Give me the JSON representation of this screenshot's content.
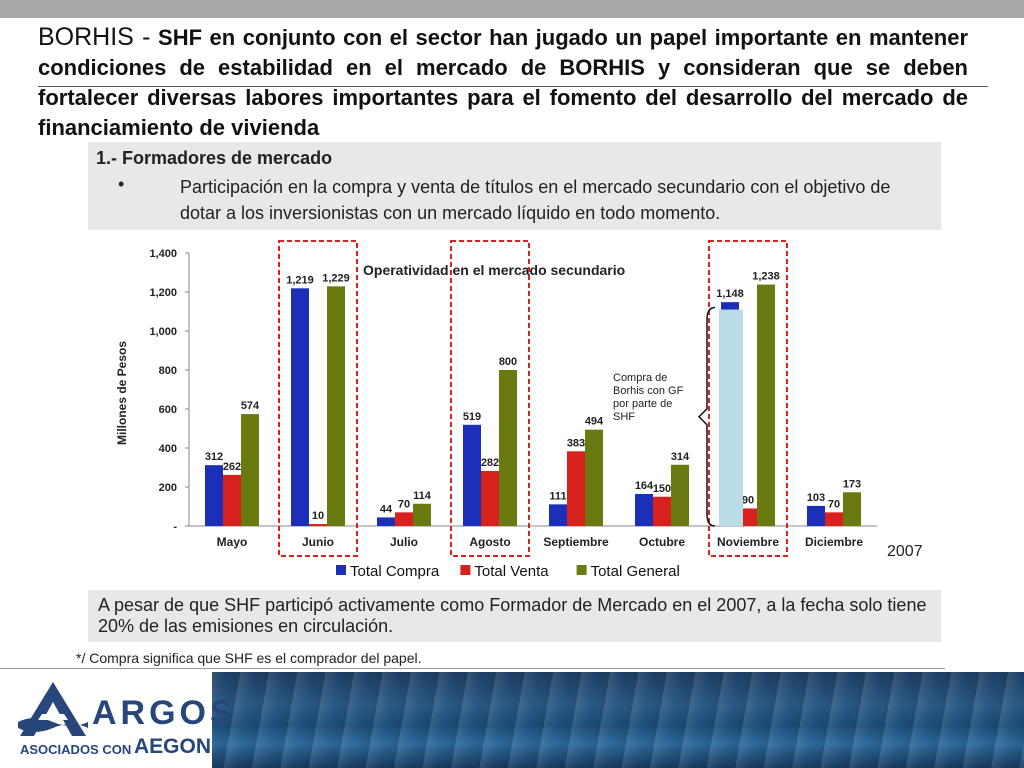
{
  "heading": {
    "brand": "BORHIS -",
    "text": "SHF en conjunto con el sector han jugado un papel importante en mantener condiciones de estabilidad en el mercado de BORHIS y consideran que se deben fortalecer diversas labores importantes para el fomento del desarrollo del mercado de financiamiento de vivienda"
  },
  "section1": {
    "title": "1.- Formadores de mercado",
    "bullet": "•",
    "text": "Participación en la compra y venta de títulos en el mercado secundario con el objetivo de dotar a los inversionistas con un mercado líquido en todo momento."
  },
  "chart_data": {
    "type": "bar",
    "title": "Operatividad en el mercado secundario",
    "ylabel": "Millones de Pesos",
    "xlabel": "",
    "year": "2007",
    "ylim": [
      0,
      1400
    ],
    "yticks": [
      0,
      200,
      400,
      600,
      800,
      1000,
      1200,
      1400
    ],
    "ytick_labels": [
      "-",
      "200",
      "400",
      "600",
      "800",
      "1,000",
      "1,200",
      "1,400"
    ],
    "categories": [
      "Mayo",
      "Junio",
      "Julio",
      "Agosto",
      "Septiembre",
      "Octubre",
      "Noviembre",
      "Diciembre"
    ],
    "series": [
      {
        "name": "Total Compra",
        "color": "#1c2fb8",
        "values": [
          312,
          1219,
          44,
          519,
          111,
          164,
          1148,
          103
        ],
        "labels": [
          "312",
          "1,219",
          "44",
          "519",
          "111",
          "164",
          "1,148",
          "103"
        ]
      },
      {
        "name": "Total Venta",
        "color": "#d8201c",
        "values": [
          262,
          10,
          70,
          282,
          383,
          150,
          90,
          70
        ],
        "labels": [
          "262",
          "10",
          "70",
          "282",
          "383",
          "150",
          "90",
          "70"
        ]
      },
      {
        "name": "Total General",
        "color": "#6b7a10",
        "values": [
          574,
          1229,
          114,
          800,
          494,
          314,
          1238,
          173
        ],
        "labels": [
          "574",
          "1,229",
          "114",
          "800",
          "494",
          "314",
          "1,238",
          "173"
        ]
      }
    ],
    "highlighted_categories": [
      "Junio",
      "Agosto",
      "Noviembre"
    ],
    "annotation": {
      "category": "Noviembre",
      "value": 1110,
      "color": "#b9dde6",
      "lines": [
        "Compra de",
        "Borhis con GF",
        "por parte de",
        "SHF"
      ]
    }
  },
  "section2": {
    "text": "A pesar de que SHF participó activamente como Formador de Mercado en el 2007, a la fecha solo tiene 20% de las emisiones en circulación."
  },
  "footnote": "*/ Compra significa que SHF es el comprador del papel.",
  "footer": {
    "logo_name": "ARGOS",
    "associates_text": "ASOCIADOS CON",
    "partner_name": "AEGON"
  }
}
